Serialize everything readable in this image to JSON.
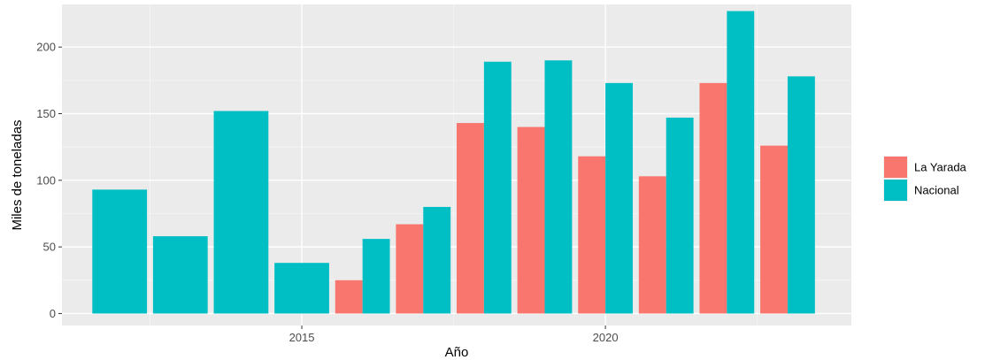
{
  "chart_data": {
    "type": "bar",
    "xlabel": "Año",
    "ylabel": "Miles de toneladas",
    "x": [
      2012,
      2013,
      2014,
      2015,
      2016,
      2017,
      2018,
      2019,
      2020,
      2021,
      2022,
      2023
    ],
    "xlim": [
      2011.05,
      2024.05
    ],
    "ylim": [
      -9,
      232
    ],
    "x_ticks": [
      2015,
      2020
    ],
    "x_tick_labels": [
      "2015",
      "2020"
    ],
    "y_ticks": [
      0,
      50,
      100,
      150,
      200
    ],
    "y_tick_labels": [
      "0",
      "50",
      "100",
      "150",
      "200"
    ],
    "grid": true,
    "legend_position": "right",
    "series": [
      {
        "name": "La Yarada",
        "color": "#F8766D",
        "values": [
          null,
          null,
          null,
          null,
          25,
          67,
          143,
          140,
          118,
          103,
          173,
          126
        ]
      },
      {
        "name": "Nacional",
        "color": "#00BFC4",
        "values": [
          93,
          58,
          152,
          38,
          56,
          80,
          189,
          190,
          173,
          147,
          227,
          178
        ]
      }
    ]
  }
}
